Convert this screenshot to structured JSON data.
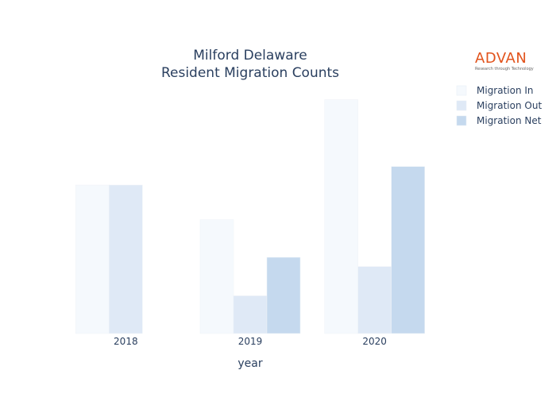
{
  "logo": {
    "word": "ADVAN",
    "tagline": "Research through Technology"
  },
  "colors": {
    "Migration In": "#f5f9fd",
    "Migration Out": "#dfe9f6",
    "Migration Net": "#c5d9ee"
  },
  "chart_data": {
    "type": "bar",
    "title": "Milford Delaware",
    "subtitle": "Resident Migration Counts",
    "xlabel": "year",
    "ylabel": "",
    "categories": [
      "2018",
      "2019",
      "2020"
    ],
    "series": [
      {
        "name": "Migration In",
        "values": [
          193,
          148,
          304
        ]
      },
      {
        "name": "Migration Out",
        "values": [
          193,
          49,
          87
        ]
      },
      {
        "name": "Migration Net",
        "values": [
          0,
          99,
          217
        ]
      }
    ],
    "ylim": [
      0,
      320
    ],
    "grid": false,
    "legend": "top-right"
  }
}
